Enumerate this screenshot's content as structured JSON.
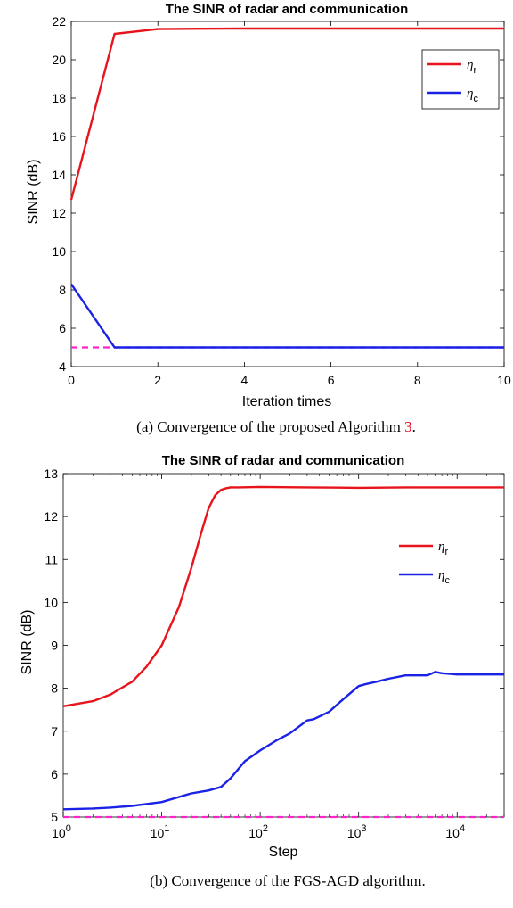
{
  "chart_data": [
    {
      "type": "line",
      "title": "The SINR of radar and communication",
      "xlabel": "Iteration times",
      "ylabel": "SINR (dB)",
      "xlim": [
        0,
        10
      ],
      "ylim": [
        4,
        22
      ],
      "x_ticks": [
        "0",
        "2",
        "4",
        "6",
        "8",
        "10"
      ],
      "y_ticks": [
        "4",
        "6",
        "8",
        "10",
        "12",
        "14",
        "16",
        "18",
        "20",
        "22"
      ],
      "series": [
        {
          "name": "ηr",
          "color": "#e8141b",
          "x": [
            0,
            1,
            2,
            3,
            4,
            5,
            6,
            7,
            8,
            9,
            10
          ],
          "y": [
            12.7,
            21.35,
            21.6,
            21.62,
            21.63,
            21.63,
            21.63,
            21.63,
            21.63,
            21.63,
            21.63
          ]
        },
        {
          "name": "ηc",
          "color": "#1a22e6",
          "x": [
            0,
            1,
            2,
            3,
            4,
            5,
            6,
            7,
            8,
            9,
            10
          ],
          "y": [
            8.3,
            5.0,
            5.0,
            5.0,
            5.0,
            5.0,
            5.0,
            5.0,
            5.0,
            5.0,
            5.0
          ]
        }
      ],
      "threshold": {
        "y": 5.0,
        "color": "#ff22cc",
        "dash": true
      },
      "legend": {
        "position": "top-right",
        "entries": [
          {
            "symbol": "η",
            "sub": "r"
          },
          {
            "symbol": "η",
            "sub": "c"
          }
        ]
      },
      "grid": false
    },
    {
      "type": "line",
      "xscale": "log",
      "title": "The SINR of radar and communication",
      "xlabel": "Step",
      "ylabel": "SINR (dB)",
      "xlim": [
        1,
        30000
      ],
      "ylim": [
        5,
        13
      ],
      "x_ticks": [
        {
          "base": "10",
          "exp": "0"
        },
        {
          "base": "10",
          "exp": "1"
        },
        {
          "base": "10",
          "exp": "2"
        },
        {
          "base": "10",
          "exp": "3"
        },
        {
          "base": "10",
          "exp": "4"
        }
      ],
      "y_ticks": [
        "5",
        "6",
        "7",
        "8",
        "9",
        "10",
        "11",
        "12",
        "13"
      ],
      "series": [
        {
          "name": "ηr",
          "color": "#e8141b",
          "x": [
            1,
            2,
            3,
            5,
            7,
            10,
            15,
            20,
            25,
            30,
            35,
            40,
            45,
            50,
            60,
            100,
            300,
            1000,
            3000,
            10000,
            30000
          ],
          "y": [
            7.58,
            7.7,
            7.85,
            8.15,
            8.5,
            9.0,
            9.9,
            10.8,
            11.6,
            12.2,
            12.5,
            12.62,
            12.66,
            12.68,
            12.68,
            12.69,
            12.68,
            12.67,
            12.68,
            12.68,
            12.68
          ]
        },
        {
          "name": "ηc",
          "color": "#1a22e6",
          "x": [
            1,
            2,
            3,
            5,
            10,
            20,
            30,
            40,
            50,
            70,
            100,
            150,
            200,
            300,
            350,
            500,
            700,
            1000,
            1200,
            1500,
            2000,
            3000,
            5000,
            6000,
            7000,
            10000,
            30000
          ],
          "y": [
            5.18,
            5.2,
            5.22,
            5.26,
            5.35,
            5.55,
            5.62,
            5.7,
            5.9,
            6.3,
            6.55,
            6.8,
            6.95,
            7.25,
            7.28,
            7.45,
            7.75,
            8.05,
            8.1,
            8.15,
            8.22,
            8.3,
            8.3,
            8.38,
            8.35,
            8.32,
            8.32
          ]
        }
      ],
      "threshold": {
        "y": 5.0,
        "color": "#ff22cc",
        "dash": true
      },
      "legend": {
        "position": "right",
        "entries": [
          {
            "symbol": "η",
            "sub": "r"
          },
          {
            "symbol": "η",
            "sub": "c"
          }
        ]
      },
      "grid": false
    }
  ],
  "captions": [
    {
      "text": "(a)  Convergence of the proposed Algorithm ",
      "ref": "3",
      "tail": "."
    },
    {
      "text": "(b) Convergence of the FGS-AGD algorithm.",
      "ref": "",
      "tail": ""
    }
  ]
}
